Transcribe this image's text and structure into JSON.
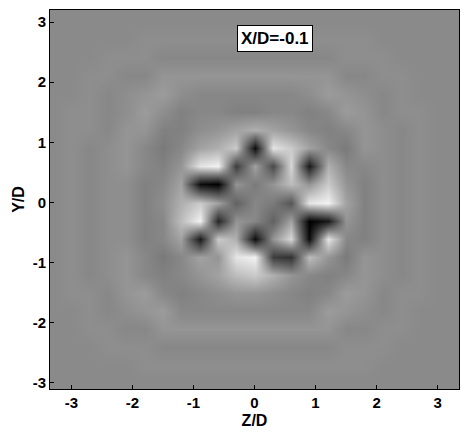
{
  "chart_data": {
    "type": "heatmap",
    "annotations": [
      "X/D=-0.1"
    ],
    "x_label": "Z/D",
    "y_label": "Y/D",
    "xlim": [
      -3.35,
      3.35
    ],
    "ylim": [
      -3.1,
      3.2
    ],
    "xticks": [
      -3,
      -2,
      -1,
      0,
      1,
      2,
      3
    ],
    "yticks": [
      -3,
      -2,
      -1,
      0,
      1,
      2,
      3
    ],
    "grid": false,
    "zlim": [
      -1,
      1
    ],
    "x": [
      -3.3,
      -3.0,
      -2.7,
      -2.4,
      -2.1,
      -1.8,
      -1.5,
      -1.2,
      -0.9,
      -0.6,
      -0.3,
      0,
      0.3,
      0.6,
      0.9,
      1.2,
      1.5,
      1.8,
      2.1,
      2.4,
      2.7,
      3.0,
      3.3
    ],
    "y": [
      -3.3,
      -3.0,
      -2.7,
      -2.4,
      -2.1,
      -1.8,
      -1.5,
      -1.2,
      -0.9,
      -0.6,
      -0.3,
      0,
      0.3,
      0.6,
      0.9,
      1.2,
      1.5,
      1.8,
      2.1,
      2.4,
      2.7,
      3.0,
      3.3
    ],
    "cells": [
      [
        0.12,
        0.12,
        0.12,
        0.12,
        0.12,
        0.12,
        0.12,
        0.12,
        0.12,
        0.12,
        0.12,
        0.12,
        0.12,
        0.12,
        0.12,
        0.12,
        0.12,
        0.12,
        0.12,
        0.12,
        0.12,
        0.12,
        0.12
      ],
      [
        0.12,
        0.12,
        0.12,
        0.12,
        0.12,
        0.12,
        0.12,
        0.12,
        0.12,
        0.12,
        0.12,
        0.12,
        0.12,
        0.12,
        0.12,
        0.12,
        0.12,
        0.12,
        0.12,
        0.12,
        0.12,
        0.12,
        0.12
      ],
      [
        0.12,
        0.12,
        0.12,
        0.12,
        0.12,
        0.15,
        0.15,
        0.15,
        0.15,
        0.15,
        0.15,
        0.15,
        0.15,
        0.15,
        0.15,
        0.15,
        0.15,
        0.15,
        0.12,
        0.12,
        0.12,
        0.12,
        0.12
      ],
      [
        0.12,
        0.12,
        0.12,
        0.15,
        0.15,
        0.15,
        0.1,
        0.1,
        0.1,
        0.1,
        0.1,
        0.1,
        0.1,
        0.1,
        0.1,
        0.1,
        0.15,
        0.15,
        0.15,
        0.12,
        0.12,
        0.12,
        0.12
      ],
      [
        0.12,
        0.12,
        0.15,
        0.15,
        0.1,
        0.1,
        0.2,
        0.2,
        0.2,
        0.2,
        0.2,
        0.2,
        0.2,
        0.2,
        0.2,
        0.2,
        0.1,
        0.1,
        0.15,
        0.15,
        0.12,
        0.12,
        0.12
      ],
      [
        0.12,
        0.12,
        0.15,
        0.1,
        0.15,
        0.2,
        0.25,
        0.1,
        0.1,
        0.1,
        0.1,
        0.1,
        0.1,
        0.1,
        0.1,
        0.25,
        0.2,
        0.15,
        0.1,
        0.15,
        0.12,
        0.12,
        0.12
      ],
      [
        0.12,
        0.15,
        0.15,
        0.1,
        0.2,
        0.25,
        0.1,
        0.05,
        0.1,
        0.15,
        0.2,
        0.2,
        0.15,
        0.1,
        0.05,
        0.1,
        0.25,
        0.2,
        0.1,
        0.15,
        0.15,
        0.12,
        0.12
      ],
      [
        0.12,
        0.15,
        0.1,
        0.15,
        0.2,
        0.1,
        0.05,
        0.1,
        0.2,
        0.3,
        0.5,
        0.6,
        0.4,
        0.2,
        0.1,
        0.05,
        0.1,
        0.2,
        0.15,
        0.1,
        0.15,
        0.12,
        0.12
      ],
      [
        0.12,
        0.15,
        0.1,
        0.15,
        0.2,
        0.1,
        0.0,
        0.1,
        0.3,
        0.2,
        0.8,
        0.9,
        -0.5,
        -0.6,
        0.5,
        0.2,
        0.0,
        0.2,
        0.15,
        0.1,
        0.15,
        0.12,
        0.12
      ],
      [
        0.12,
        0.15,
        0.1,
        0.15,
        0.15,
        0.05,
        0.1,
        0.3,
        -0.8,
        0.6,
        0.4,
        -0.9,
        0.2,
        0.7,
        -0.9,
        0.8,
        0.1,
        0.05,
        0.15,
        0.1,
        0.15,
        0.12,
        0.12
      ],
      [
        0.12,
        0.15,
        0.1,
        0.15,
        0.15,
        0.05,
        0.1,
        0.5,
        0.9,
        -0.7,
        0.2,
        0.1,
        -0.2,
        0.3,
        -1.0,
        -0.8,
        0.2,
        0.05,
        0.15,
        0.1,
        0.15,
        0.12,
        0.12
      ],
      [
        0.12,
        0.15,
        0.1,
        0.15,
        0.15,
        0.05,
        0.15,
        0.4,
        0.6,
        0.3,
        -0.2,
        0.1,
        0.0,
        -0.3,
        0.8,
        0.9,
        0.3,
        0.05,
        0.15,
        0.1,
        0.15,
        0.12,
        0.12
      ],
      [
        0.12,
        0.15,
        0.1,
        0.15,
        0.15,
        0.05,
        0.1,
        0.3,
        -0.9,
        -1.0,
        0.2,
        0.0,
        0.2,
        0.5,
        0.2,
        0.6,
        0.2,
        0.05,
        0.15,
        0.1,
        0.15,
        0.12,
        0.12
      ],
      [
        0.12,
        0.15,
        0.1,
        0.15,
        0.2,
        0.1,
        0.05,
        0.2,
        0.8,
        0.9,
        -0.5,
        0.3,
        -0.4,
        0.7,
        -0.8,
        0.4,
        0.1,
        0.1,
        0.15,
        0.1,
        0.15,
        0.12,
        0.12
      ],
      [
        0.12,
        0.15,
        0.1,
        0.15,
        0.2,
        0.1,
        0.0,
        0.1,
        0.3,
        0.4,
        0.6,
        -0.9,
        0.8,
        0.6,
        0.3,
        0.1,
        0.0,
        0.2,
        0.15,
        0.1,
        0.15,
        0.12,
        0.12
      ],
      [
        0.12,
        0.15,
        0.15,
        0.1,
        0.2,
        0.2,
        0.05,
        0.05,
        0.15,
        0.2,
        0.3,
        0.4,
        0.3,
        0.2,
        0.1,
        0.05,
        0.1,
        0.2,
        0.15,
        0.1,
        0.15,
        0.12,
        0.12
      ],
      [
        0.12,
        0.15,
        0.15,
        0.1,
        0.15,
        0.25,
        0.15,
        0.05,
        0.1,
        0.1,
        0.05,
        0.05,
        0.1,
        0.1,
        0.05,
        0.1,
        0.25,
        0.2,
        0.1,
        0.15,
        0.15,
        0.12,
        0.12
      ],
      [
        0.12,
        0.12,
        0.15,
        0.1,
        0.15,
        0.2,
        0.25,
        0.15,
        0.1,
        0.1,
        0.1,
        0.1,
        0.1,
        0.1,
        0.15,
        0.25,
        0.2,
        0.15,
        0.1,
        0.15,
        0.12,
        0.12,
        0.12
      ],
      [
        0.12,
        0.12,
        0.15,
        0.15,
        0.1,
        0.1,
        0.2,
        0.2,
        0.2,
        0.2,
        0.2,
        0.2,
        0.2,
        0.2,
        0.2,
        0.2,
        0.1,
        0.1,
        0.15,
        0.15,
        0.12,
        0.12,
        0.12
      ],
      [
        0.12,
        0.12,
        0.12,
        0.15,
        0.15,
        0.15,
        0.1,
        0.1,
        0.1,
        0.1,
        0.1,
        0.1,
        0.1,
        0.1,
        0.1,
        0.1,
        0.15,
        0.15,
        0.15,
        0.12,
        0.12,
        0.12,
        0.12
      ],
      [
        0.12,
        0.12,
        0.12,
        0.12,
        0.12,
        0.15,
        0.15,
        0.15,
        0.15,
        0.15,
        0.15,
        0.15,
        0.15,
        0.15,
        0.15,
        0.15,
        0.15,
        0.15,
        0.12,
        0.12,
        0.12,
        0.12,
        0.12
      ],
      [
        0.12,
        0.12,
        0.12,
        0.12,
        0.12,
        0.12,
        0.12,
        0.12,
        0.12,
        0.12,
        0.12,
        0.12,
        0.12,
        0.12,
        0.12,
        0.12,
        0.12,
        0.12,
        0.12,
        0.12,
        0.12,
        0.12,
        0.12
      ],
      [
        0.12,
        0.12,
        0.12,
        0.12,
        0.12,
        0.12,
        0.12,
        0.12,
        0.12,
        0.12,
        0.12,
        0.12,
        0.12,
        0.12,
        0.12,
        0.12,
        0.12,
        0.12,
        0.12,
        0.12,
        0.12,
        0.12,
        0.12
      ]
    ]
  }
}
